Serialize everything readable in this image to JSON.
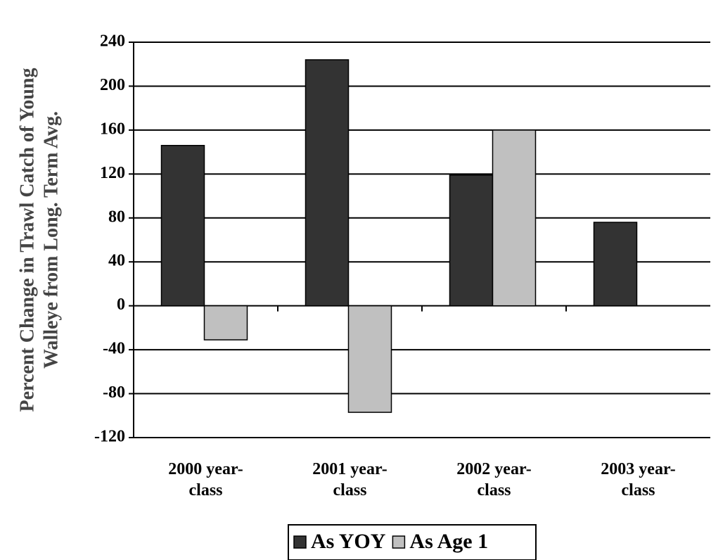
{
  "chart_data": {
    "type": "bar",
    "y_label": [
      "Percent Change in Trawl Catch of Young",
      "Walleye from Long. Term Avg."
    ],
    "categories": [
      "2000 year- class",
      "2001 year- class",
      "2002 year- class",
      "2003 year- class"
    ],
    "series": [
      {
        "name": "As YOY",
        "color": "#333333",
        "values": [
          146,
          224,
          119,
          76
        ]
      },
      {
        "name": "As Age 1",
        "color": "#c0c0c0",
        "values": [
          -31,
          -97,
          160,
          null
        ]
      }
    ],
    "ylim": [
      -120,
      240
    ],
    "yticks": [
      -120,
      -80,
      -40,
      0,
      40,
      80,
      120,
      160,
      200,
      240
    ],
    "grid": true,
    "legend": "bottom"
  }
}
